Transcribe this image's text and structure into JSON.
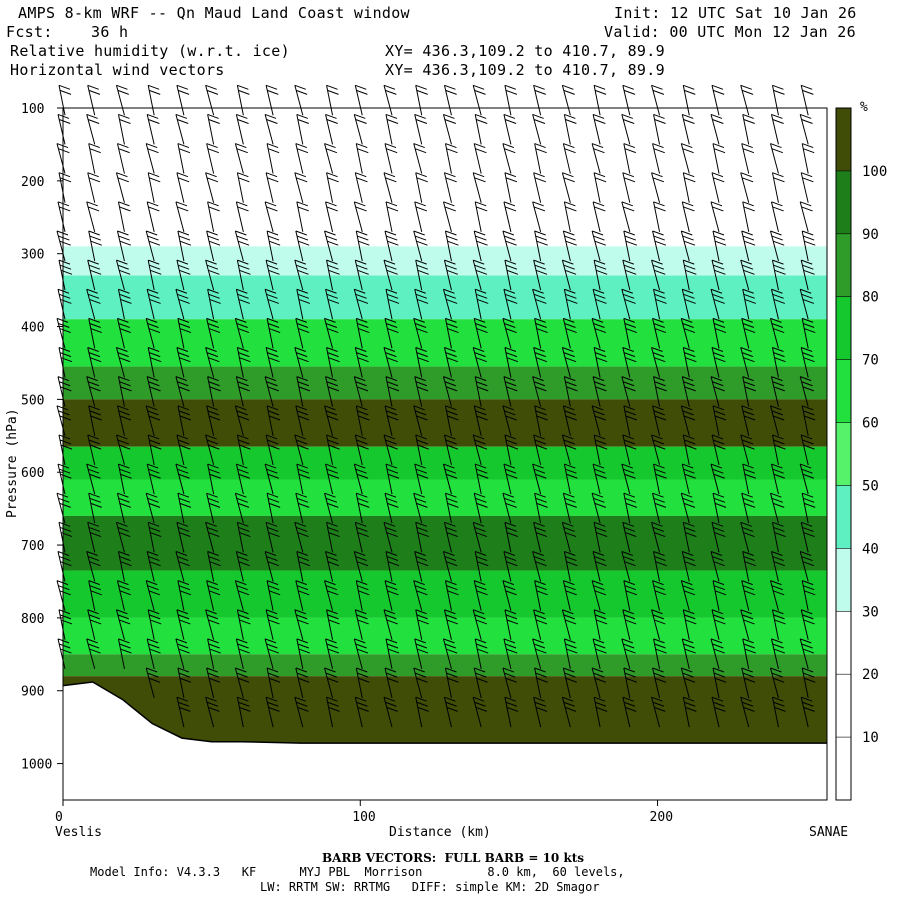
{
  "header": {
    "title": "AMPS 8-km WRF -- Qn Maud Land Coast window",
    "init": "Init: 12 UTC Sat 10 Jan 26",
    "fcst_label": "Fcst:",
    "fcst_value": "36 h",
    "valid": "Valid: 00 UTC Mon 12 Jan 26",
    "field1": "Relative humidity (w.r.t. ice)",
    "field1_xy": "XY= 436.3,109.2 to 410.7, 89.9",
    "field2": "Horizontal wind vectors",
    "field2_xy": "XY= 436.3,109.2 to 410.7, 89.9"
  },
  "footer": {
    "barb_note": "BARB VECTORS:  FULL BARB = 10 kts",
    "model_line1": "Model Info: V4.3.3   KF      MYJ PBL  Morrison         8.0 km,  60 levels,",
    "model_line2": "LW: RRTM SW: RRTMG   DIFF: simple KM: 2D Smagor"
  },
  "chart_data": {
    "type": "heatmap",
    "title": "Relative humidity (w.r.t. ice) and horizontal wind vectors, cross-section",
    "xlabel": "Distance (km)",
    "ylabel": "Pressure (hPa)",
    "x_start_label": "Veslis",
    "x_end_label": "SANAE",
    "xlim": [
      0,
      257
    ],
    "ylim": [
      1050,
      100
    ],
    "x_ticks": [
      "0",
      "100",
      "200"
    ],
    "x_tick_values": [
      0,
      100,
      200
    ],
    "y_ticks": [
      "100",
      "200",
      "300",
      "400",
      "500",
      "600",
      "700",
      "800",
      "900",
      "1000"
    ],
    "y_tick_values": [
      100,
      200,
      300,
      400,
      500,
      600,
      700,
      800,
      900,
      1000
    ],
    "colorbar": {
      "unit": "%",
      "labels": [
        "10",
        "20",
        "30",
        "40",
        "50",
        "60",
        "70",
        "80",
        "90",
        "100"
      ],
      "bins": [
        {
          "range": [
            0,
            30
          ],
          "color": "#ffffff"
        },
        {
          "range": [
            30,
            40
          ],
          "color": "#c0fceb"
        },
        {
          "range": [
            40,
            50
          ],
          "color": "#5ff0c2"
        },
        {
          "range": [
            50,
            60
          ],
          "color": "#55f26a"
        },
        {
          "range": [
            60,
            70
          ],
          "color": "#22e03e"
        },
        {
          "range": [
            70,
            80
          ],
          "color": "#15c82e"
        },
        {
          "range": [
            80,
            90
          ],
          "color": "#2f9c2a"
        },
        {
          "range": [
            90,
            100
          ],
          "color": "#1e7f1a"
        },
        {
          "range": [
            100,
            120
          ],
          "color": "#3f4d06"
        }
      ]
    },
    "rh_layers": [
      {
        "p_top": 290,
        "p_bottom": 330,
        "rh": 35
      },
      {
        "p_top": 330,
        "p_bottom": 390,
        "rh": 45
      },
      {
        "p_top": 390,
        "p_bottom": 455,
        "rh": 62
      },
      {
        "p_top": 455,
        "p_bottom": 500,
        "rh": 85
      },
      {
        "p_top": 500,
        "p_bottom": 565,
        "rh": 102
      },
      {
        "p_top": 565,
        "p_bottom": 610,
        "rh": 75
      },
      {
        "p_top": 610,
        "p_bottom": 660,
        "rh": 62
      },
      {
        "p_top": 660,
        "p_bottom": 735,
        "rh": 92
      },
      {
        "p_top": 735,
        "p_bottom": 800,
        "rh": 72
      },
      {
        "p_top": 800,
        "p_bottom": 850,
        "rh": 65
      },
      {
        "p_top": 850,
        "p_bottom": 880,
        "rh": 85
      },
      {
        "p_top": 880,
        "p_bottom": 1000,
        "rh": 102
      }
    ],
    "terrain": {
      "distance_km": [
        0,
        10,
        20,
        30,
        40,
        50,
        60,
        80,
        100,
        150,
        200,
        257
      ],
      "surface_pressure_hpa": [
        893,
        888,
        912,
        945,
        965,
        970,
        970,
        972,
        972,
        972,
        972,
        972
      ]
    },
    "barb_columns_km": [
      0,
      10,
      20,
      30,
      40,
      50,
      60,
      70,
      80,
      90,
      100,
      110,
      120,
      130,
      140,
      150,
      160,
      170,
      180,
      190,
      200,
      210,
      220,
      230,
      240,
      250
    ],
    "barb_levels_hpa": [
      110,
      150,
      190,
      230,
      270,
      310,
      350,
      390,
      430,
      470,
      510,
      550,
      590,
      630,
      670,
      710,
      750,
      790,
      830,
      870,
      910,
      950
    ],
    "barb_full_kts": 10
  }
}
